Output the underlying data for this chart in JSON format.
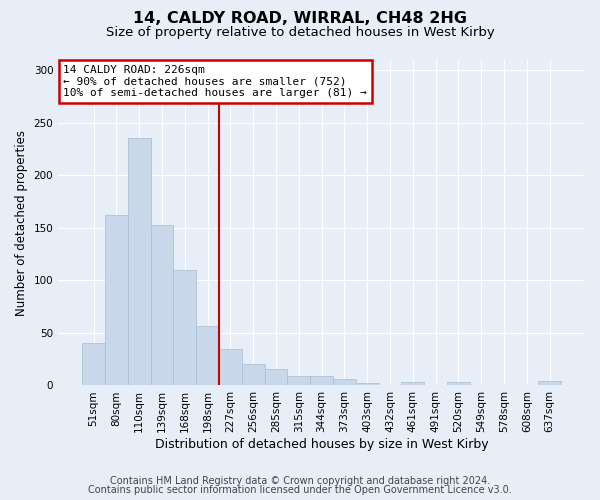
{
  "title": "14, CALDY ROAD, WIRRAL, CH48 2HG",
  "subtitle": "Size of property relative to detached houses in West Kirby",
  "xlabel": "Distribution of detached houses by size in West Kirby",
  "ylabel": "Number of detached properties",
  "categories": [
    "51sqm",
    "80sqm",
    "110sqm",
    "139sqm",
    "168sqm",
    "198sqm",
    "227sqm",
    "256sqm",
    "285sqm",
    "315sqm",
    "344sqm",
    "373sqm",
    "403sqm",
    "432sqm",
    "461sqm",
    "491sqm",
    "520sqm",
    "549sqm",
    "578sqm",
    "608sqm",
    "637sqm"
  ],
  "values": [
    40,
    162,
    236,
    153,
    110,
    57,
    35,
    20,
    16,
    9,
    9,
    6,
    2,
    0,
    3,
    0,
    3,
    0,
    0,
    0,
    4
  ],
  "bar_color": "#c8d8ea",
  "bar_edge_color": "#a8bece",
  "vline_position": 5.5,
  "vline_color": "#cc0000",
  "annotation_line1": "14 CALDY ROAD: 226sqm",
  "annotation_line2": "← 90% of detached houses are smaller (752)",
  "annotation_line3": "10% of semi-detached houses are larger (81) →",
  "annotation_box_facecolor": "#ffffff",
  "annotation_box_edgecolor": "#cc0000",
  "ylim": [
    0,
    310
  ],
  "yticks": [
    0,
    50,
    100,
    150,
    200,
    250,
    300
  ],
  "bg_color": "#e8eef8",
  "grid_color": "#ffffff",
  "title_fontsize": 11.5,
  "subtitle_fontsize": 9.5,
  "ylabel_fontsize": 8.5,
  "xlabel_fontsize": 9,
  "tick_fontsize": 7.5,
  "annot_fontsize": 8,
  "footer_fontsize": 7,
  "footer1": "Contains HM Land Registry data © Crown copyright and database right 2024.",
  "footer2": "Contains public sector information licensed under the Open Government Licence v3.0."
}
